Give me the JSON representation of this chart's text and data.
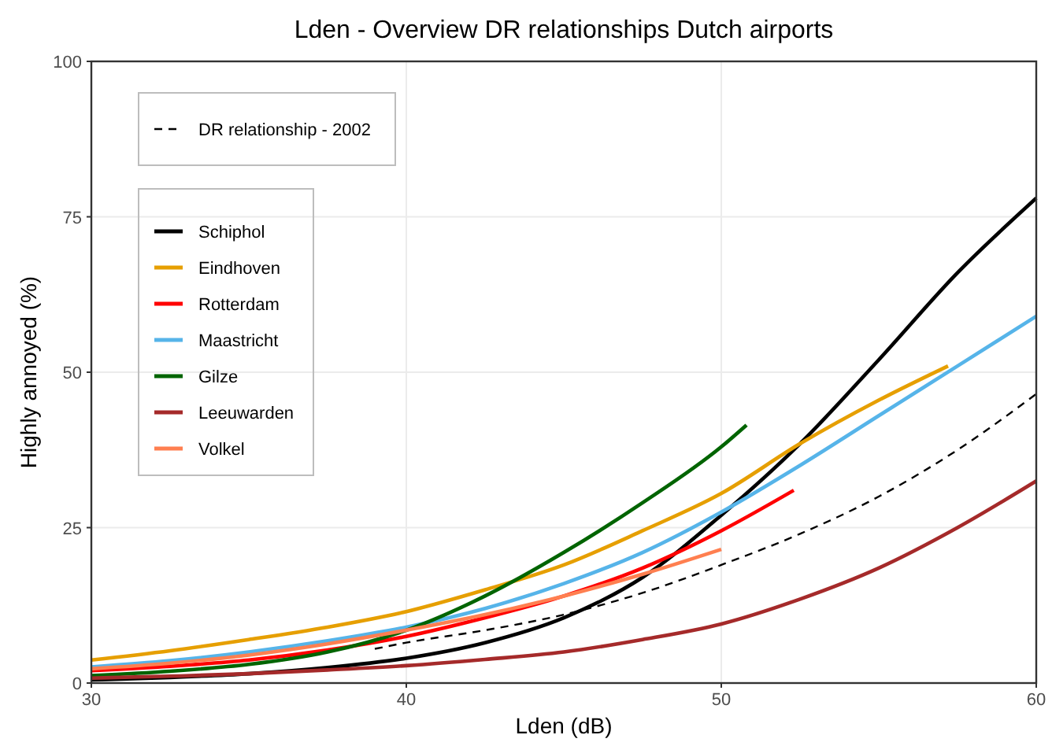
{
  "chart_data": {
    "type": "line",
    "title": "Lden - Overview DR relationships Dutch airports",
    "xlabel": "Lden (dB)",
    "ylabel": "Highly annoyed (%)",
    "xlim": [
      30,
      60
    ],
    "ylim": [
      0,
      100
    ],
    "xticks": [
      30,
      40,
      50,
      60
    ],
    "yticks": [
      0,
      25,
      50,
      75,
      100
    ],
    "grid": true,
    "legend": "top left",
    "marker": "none",
    "series": [
      {
        "name": "DR relationship - 2002",
        "color": "#000000",
        "line_style": "dashed",
        "x": [
          39,
          40,
          42.5,
          45,
          47.5,
          50,
          52.5,
          55,
          57.5,
          60
        ],
        "values": [
          5.5,
          6.5,
          8.5,
          11,
          14.5,
          19,
          24,
          30,
          37.5,
          46.5
        ]
      },
      {
        "name": "Schiphol",
        "color": "#000000",
        "x": [
          30,
          32.5,
          35,
          37.5,
          40,
          42.5,
          45,
          47.5,
          50,
          52.5,
          55,
          57.5,
          60
        ],
        "values": [
          0.5,
          0.9,
          1.5,
          2.5,
          4,
          6.5,
          10.5,
          17,
          27,
          38.5,
          52,
          66,
          78
        ]
      },
      {
        "name": "Eindhoven",
        "color": "#e69f00",
        "x": [
          30,
          32.5,
          35,
          37.5,
          40,
          42.5,
          45,
          47.5,
          50,
          52.5,
          55,
          57.2
        ],
        "values": [
          3.7,
          5.2,
          7,
          9,
          11.5,
          15,
          19,
          24.5,
          30.5,
          38.5,
          45.5,
          51
        ]
      },
      {
        "name": "Rotterdam",
        "color": "#ff0000",
        "x": [
          30,
          32.5,
          35,
          37.5,
          40,
          42.5,
          45,
          47.5,
          50,
          52.3
        ],
        "values": [
          2,
          2.7,
          3.7,
          5.3,
          7.5,
          10.5,
          14,
          18.5,
          24.5,
          31
        ]
      },
      {
        "name": "Maastricht",
        "color": "#56b4e9",
        "x": [
          30,
          32.5,
          35,
          37.5,
          40,
          42.5,
          45,
          47.5,
          50,
          52.5,
          55,
          57.5,
          60
        ],
        "values": [
          2.6,
          3.6,
          5,
          6.8,
          9,
          12,
          16,
          21,
          27.5,
          35,
          43,
          51,
          59
        ]
      },
      {
        "name": "Gilze",
        "color": "#006400",
        "x": [
          30,
          32.5,
          35,
          37.5,
          40,
          42.5,
          45,
          47.5,
          50,
          50.8
        ],
        "values": [
          1.2,
          1.9,
          3,
          5,
          8.5,
          14,
          21,
          29,
          38,
          41.5
        ]
      },
      {
        "name": "Leeuwarden",
        "color": "#a52a2a",
        "x": [
          30,
          32.5,
          35,
          37.5,
          40,
          42.5,
          45,
          47.5,
          50,
          52.5,
          55,
          57.5,
          60
        ],
        "values": [
          0.8,
          1.1,
          1.5,
          2.1,
          2.8,
          3.8,
          5,
          7,
          9.5,
          13.5,
          18.5,
          25,
          32.5
        ]
      },
      {
        "name": "Volkel",
        "color": "#ff7f50",
        "x": [
          30,
          32.5,
          35,
          37.5,
          40,
          42.5,
          45,
          47.5,
          50
        ],
        "values": [
          2.3,
          3.2,
          4.5,
          6.3,
          8.5,
          11,
          14,
          17.5,
          21.5
        ]
      }
    ]
  }
}
